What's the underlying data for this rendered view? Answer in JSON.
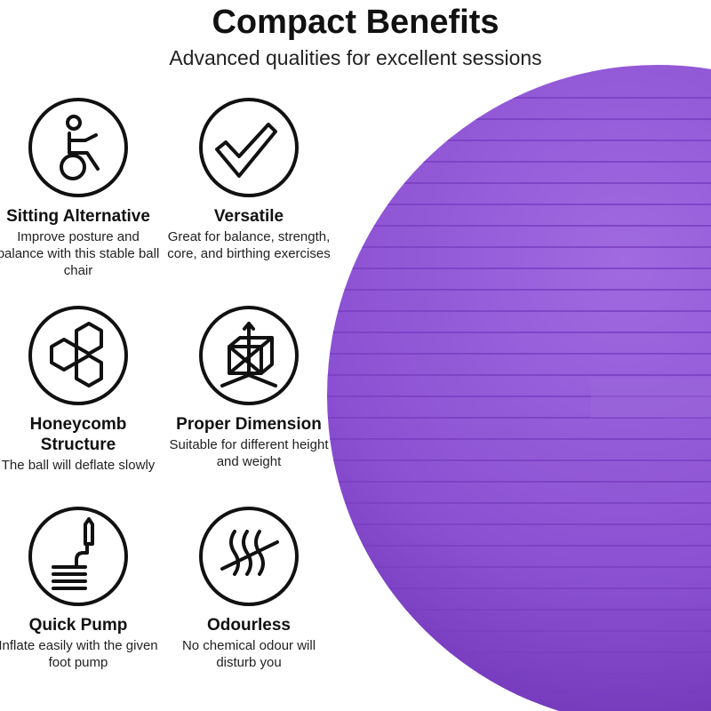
{
  "header": {
    "title": "Compact Benefits",
    "subtitle": "Advanced qualities for excellent sessions"
  },
  "colors": {
    "ball": "#8b50d2",
    "ball_dark": "#6f35b5",
    "text": "#111111"
  },
  "features": [
    {
      "icon": "sitting-ball-person-icon",
      "title": "Sitting Alternative",
      "desc": "Improve posture and balance with this stable ball chair"
    },
    {
      "icon": "checkmark-icon",
      "title": "Versatile",
      "desc": "Great for balance, strength, core, and birthing exercises"
    },
    {
      "icon": "honeycomb-icon",
      "title": "Honeycomb Structure",
      "desc": "The ball will deflate slowly"
    },
    {
      "icon": "dimension-cube-icon",
      "title": "Proper Dimension",
      "desc": "Suitable for different height and weight"
    },
    {
      "icon": "foot-pump-icon",
      "title": "Quick Pump",
      "desc": "Inflate easily with the given foot pump"
    },
    {
      "icon": "no-odour-icon",
      "title": "Odourless",
      "desc": "No chemical odour will disturb you"
    }
  ]
}
